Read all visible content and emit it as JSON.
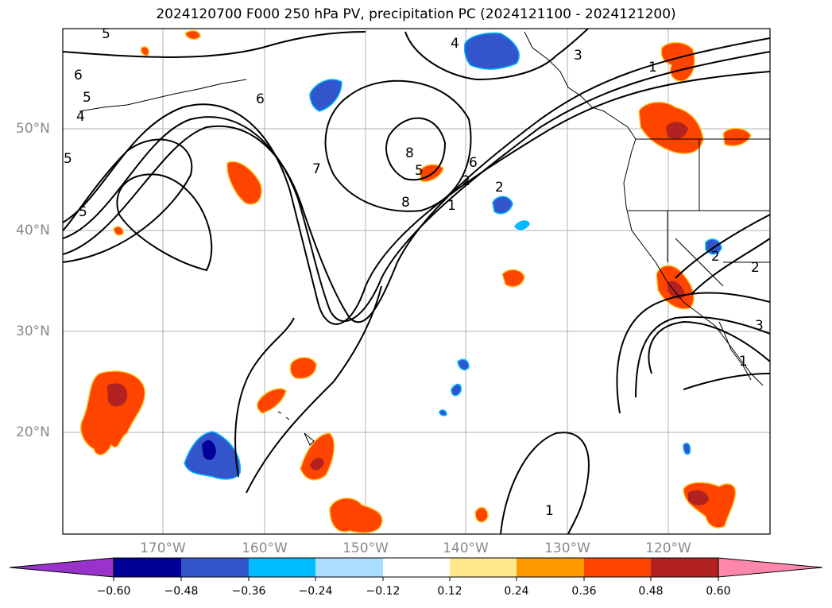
{
  "title": "2024120700 F000 250 hPa PV, precipitation PC (2024121100 - 2024121200)",
  "lat_labels": [
    "50°N",
    "40°N",
    "30°N",
    "20°N"
  ],
  "lon_labels": [
    "170°W",
    "160°W",
    "150°W",
    "140°W",
    "130°W",
    "120°W"
  ],
  "colorbar": {
    "ticks": [
      "−0.60",
      "−0.48",
      "−0.36",
      "−0.24",
      "−0.12",
      "0.12",
      "0.24",
      "0.36",
      "0.48",
      "0.60"
    ],
    "colors": [
      "#9933cc",
      "#000099",
      "#3355cc",
      "#00bbff",
      "#aaddff",
      "#ffffff",
      "#ffe88a",
      "#ff9900",
      "#ff4400",
      "#b22222",
      "#ff88aa"
    ]
  },
  "contour_labels": [
    "5",
    "6",
    "5",
    "4",
    "5",
    "5",
    "6",
    "7",
    "8",
    "8",
    "5",
    "4",
    "3",
    "1",
    "6",
    "2",
    "1",
    "2",
    "2",
    "2",
    "3",
    "1"
  ]
}
